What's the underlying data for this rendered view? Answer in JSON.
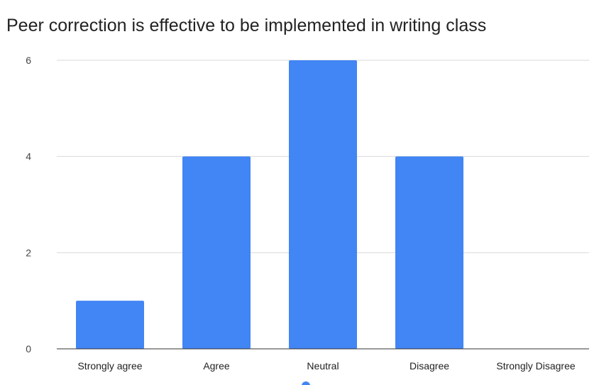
{
  "chart_data": {
    "type": "bar",
    "title": "Peer correction is effective to be implemented in writing class",
    "categories": [
      "Strongly agree",
      "Agree",
      "Neutral",
      "Disagree",
      "Strongly Disagree"
    ],
    "values": [
      1,
      4,
      6,
      4,
      0
    ],
    "yticks": [
      0,
      2,
      4,
      6
    ],
    "ylim": [
      0,
      6
    ],
    "xlabel": "",
    "ylabel": "",
    "grid": true,
    "bar_color": "#4285f4",
    "legend_position": "bottom"
  }
}
